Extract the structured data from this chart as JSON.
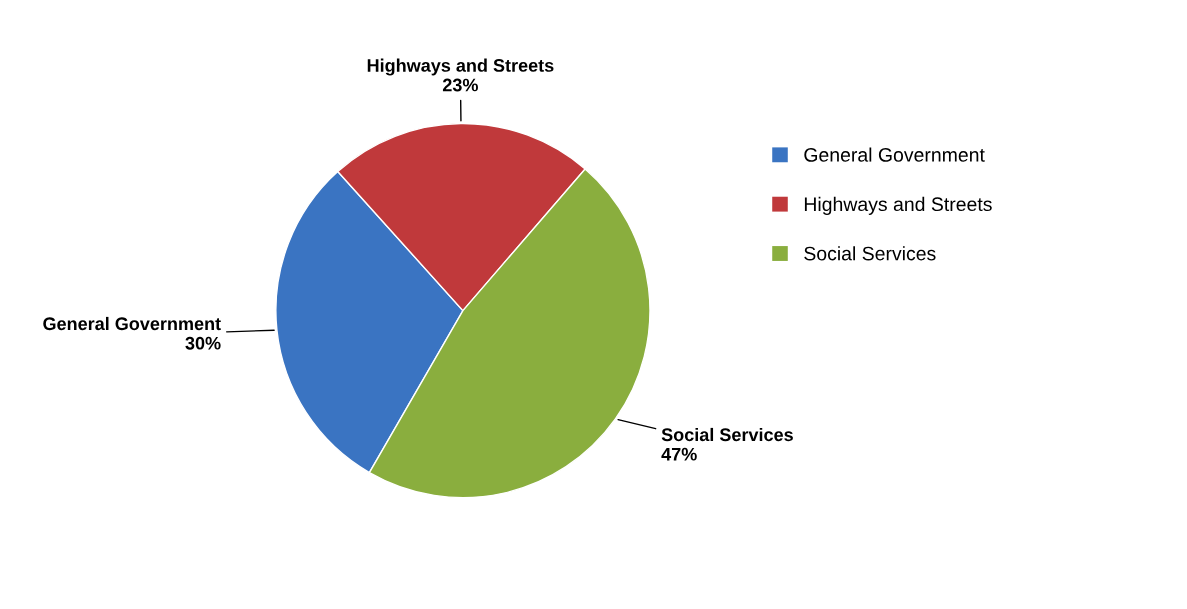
{
  "chart_data": {
    "type": "pie",
    "categories": [
      "General Government",
      "Highways and Streets",
      "Social Services"
    ],
    "values": [
      30,
      23,
      47
    ],
    "value_labels": [
      "30%",
      "23%",
      "47%"
    ],
    "colors": [
      "#3a74c2",
      "#c0393b",
      "#8aae3e"
    ],
    "legend": "right"
  }
}
